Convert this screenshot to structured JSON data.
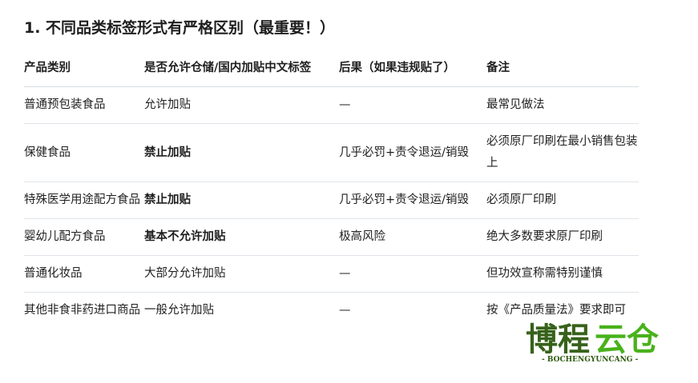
{
  "title": "1. 不同品类标签形式有严格区别（最重要！）",
  "table": {
    "headers": [
      "产品类别",
      "是否允许仓储/国内加贴中文标签",
      "后果（如果违规贴了）",
      "备注"
    ],
    "rows": [
      {
        "cells": [
          "普通预包装食品",
          "允许加贴",
          "—",
          "最常见做法"
        ],
        "bold": false
      },
      {
        "cells": [
          "保健食品",
          "禁止加贴",
          "几乎必罚+责令退运/销毁",
          "必须原厂印刷在最小销售包装上"
        ],
        "bold": true
      },
      {
        "cells": [
          "特殊医学用途配方食品",
          "禁止加贴",
          "几乎必罚+责令退运/销毁",
          "必须原厂印刷"
        ],
        "bold": true
      },
      {
        "cells": [
          "婴幼儿配方食品",
          "基本不允许加贴",
          "极高风险",
          "绝大多数要求原厂印刷"
        ],
        "bold": true
      },
      {
        "cells": [
          "普通化妆品",
          "大部分允许加贴",
          "—",
          "但功效宣称需特别谨慎"
        ],
        "bold": false
      },
      {
        "cells": [
          "其他非食非药进口商品",
          "一般允许加贴",
          "—",
          "按《产品质量法》要求即可"
        ],
        "bold": false
      }
    ]
  },
  "watermark": {
    "text": "博程云仓",
    "sub": "- BOCHENGYUNCANG -",
    "colors": {
      "dark": "#2d5a0e",
      "light": "#3fae0f"
    }
  }
}
